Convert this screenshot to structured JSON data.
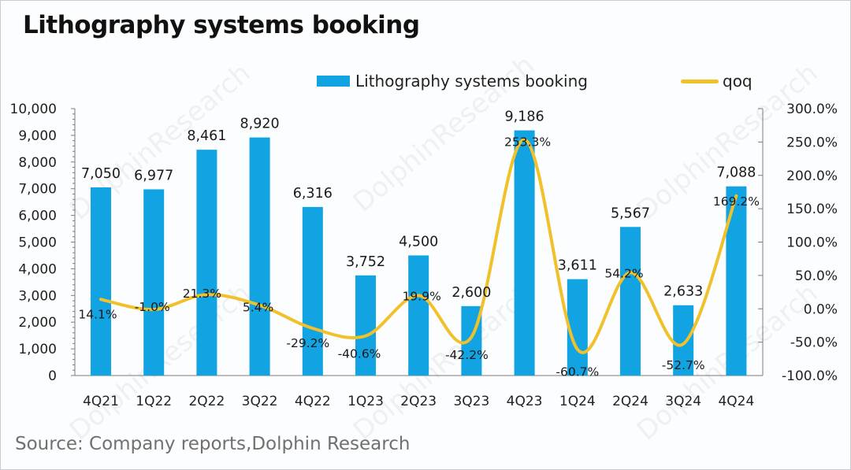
{
  "title": "Lithography systems booking",
  "source": "Source: Company reports,Dolphin Research",
  "watermark": "DolphinResearch",
  "colors": {
    "bar": "#12a3e2",
    "line": "#f1c12b",
    "axis": "#7a7a7a",
    "text": "#1a1a1a"
  },
  "chart_data": {
    "type": "bar",
    "title": "Lithography systems booking",
    "xlabel": "",
    "ylabel": "",
    "categories": [
      "4Q21",
      "1Q22",
      "2Q22",
      "3Q22",
      "4Q22",
      "1Q23",
      "2Q23",
      "3Q23",
      "4Q23",
      "1Q24",
      "2Q24",
      "3Q24",
      "4Q24"
    ],
    "series": [
      {
        "name": "Lithography systems booking",
        "type": "bar",
        "axis": "left",
        "values": [
          7050,
          6977,
          8461,
          8920,
          6316,
          3752,
          4500,
          2600,
          9186,
          3611,
          5567,
          2633,
          7088
        ],
        "labels": [
          "7,050",
          "6,977",
          "8,461",
          "8,920",
          "6,316",
          "3,752",
          "4,500",
          "2,600",
          "9,186",
          "3,611",
          "5,567",
          "2,633",
          "7,088"
        ]
      },
      {
        "name": "qoq",
        "type": "line",
        "smooth": true,
        "axis": "right",
        "values": [
          14.1,
          -1.0,
          21.3,
          5.4,
          -29.2,
          -40.6,
          19.9,
          -42.2,
          253.3,
          -60.7,
          54.2,
          -52.7,
          169.2
        ],
        "labels": [
          "14.1%",
          "-1.0%",
          "21.3%",
          "5.4%",
          "-29.2%",
          "-40.6%",
          "19.9%",
          "-42.2%",
          "253.3%",
          "-60.7%",
          "54.2%",
          "-52.7%",
          "169.2%"
        ]
      }
    ],
    "y_left": {
      "ylim": [
        0,
        10000
      ],
      "ticks": [
        0,
        1000,
        2000,
        3000,
        4000,
        5000,
        6000,
        7000,
        8000,
        9000,
        10000
      ],
      "tick_labels": [
        "0",
        "1,000",
        "2,000",
        "3,000",
        "4,000",
        "5,000",
        "6,000",
        "7,000",
        "8,000",
        "9,000",
        "10,000"
      ]
    },
    "y_right": {
      "ylim": [
        -100,
        300
      ],
      "ticks": [
        -100,
        -50,
        0,
        50,
        100,
        150,
        200,
        250,
        300
      ],
      "tick_labels": [
        "-100.0%",
        "-50.0%",
        "0.0%",
        "50.0%",
        "100.0%",
        "150.0%",
        "200.0%",
        "250.0%",
        "300.0%"
      ]
    },
    "legend": {
      "position": "top",
      "entries": [
        "Lithography systems booking",
        "qoq"
      ]
    },
    "grid": false
  }
}
